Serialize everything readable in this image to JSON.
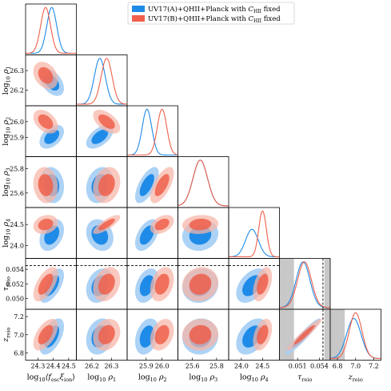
{
  "chart_data": {
    "type": "corner-plot",
    "title": "",
    "colors": {
      "A": "#1f8be8",
      "B": "#f0604a",
      "A_light": "#a8d0f4",
      "B_light": "#f7b4a6",
      "prior_band": "#c8c8c8"
    },
    "legend": {
      "placement": "top-right",
      "entries": [
        {
          "series": "A",
          "pre": "UV17(A)+QHII+Planck with ",
          "sym": "C",
          "sub": "HII",
          "post": " fixed"
        },
        {
          "series": "B",
          "pre": "UV17(B)+QHII+Planck with ",
          "sym": "C",
          "sub": "HII",
          "post": " fixed"
        }
      ]
    },
    "parameters": [
      {
        "key": "fesc",
        "pre": "log",
        "base": "10",
        "mid": "⟨f",
        "msub": "esc",
        "mid2": "ξ",
        "msub2": "ion",
        "post": "⟩",
        "range": [
          24.22,
          24.55
        ],
        "ticks": [
          "24.3",
          "24.4",
          "24.5"
        ]
      },
      {
        "key": "rho1",
        "pre": "log",
        "base": "10",
        "mid": " ρ",
        "msub": "1",
        "range": [
          26.12,
          26.38
        ],
        "ticks": [
          "26.2",
          "26.3"
        ]
      },
      {
        "key": "rho2",
        "pre": "log",
        "base": "10",
        "mid": " ρ",
        "msub": "2",
        "range": [
          25.78,
          26.1
        ],
        "ticks": [
          "25.9",
          "26.0"
        ]
      },
      {
        "key": "rho3",
        "pre": "log",
        "base": "10",
        "mid": " ρ",
        "msub": "3",
        "range": [
          25.48,
          25.9
        ],
        "ticks": [
          "25.6",
          "25.8"
        ]
      },
      {
        "key": "rho4",
        "pre": "log",
        "base": "10",
        "mid": " ρ",
        "msub": "4",
        "range": [
          23.7,
          24.9
        ],
        "ticks": [
          "24.0",
          "24.5"
        ]
      },
      {
        "key": "tau",
        "pre": "",
        "base": "",
        "mid": "τ",
        "msub": "reio",
        "range": [
          0.0485,
          0.0555
        ],
        "ticks": [
          "0.051",
          "0.054"
        ],
        "yticks": [
          "0.050",
          "0.052",
          "0.054"
        ]
      },
      {
        "key": "zreio",
        "pre": "",
        "base": "",
        "mid": "z",
        "msub": "reio",
        "range": [
          6.72,
          7.28
        ],
        "ticks": [
          "6.8",
          "7.0",
          "7.2"
        ]
      }
    ],
    "series": [
      {
        "name": "A",
        "mean": [
          24.39,
          26.24,
          25.905,
          25.665,
          24.25,
          0.05175,
          6.98
        ],
        "sigma": [
          0.032,
          0.028,
          0.03,
          0.06,
          0.15,
          0.00095,
          0.08
        ]
      },
      {
        "name": "B",
        "mean": [
          24.35,
          26.275,
          26.0,
          25.665,
          24.5,
          0.05195,
          7.0
        ],
        "sigma": [
          0.032,
          0.028,
          0.03,
          0.06,
          0.09,
          0.00095,
          0.07
        ]
      }
    ],
    "correlations": {
      "A": [
        [
          1,
          -0.45,
          0.45,
          -0.1,
          0.35,
          0.6,
          0.55
        ],
        [
          -0.45,
          1,
          0.55,
          0.2,
          -0.2,
          0.25,
          0.2
        ],
        [
          0.45,
          0.55,
          1,
          0.65,
          0.5,
          0.35,
          0.3
        ],
        [
          -0.1,
          0.2,
          0.65,
          1,
          0.1,
          0.1,
          0.05
        ],
        [
          0.35,
          -0.2,
          0.5,
          0.1,
          1,
          0.45,
          0.4
        ],
        [
          0.6,
          0.25,
          0.35,
          0.1,
          0.45,
          1,
          0.95
        ],
        [
          0.55,
          0.2,
          0.3,
          0.05,
          0.4,
          0.95,
          1
        ]
      ],
      "B": [
        [
          1,
          -0.3,
          -0.4,
          -0.1,
          0.2,
          0.6,
          0.55
        ],
        [
          -0.3,
          1,
          -0.55,
          0.2,
          0.8,
          0.25,
          0.2
        ],
        [
          -0.4,
          -0.55,
          1,
          0.65,
          0.4,
          0.3,
          0.3
        ],
        [
          -0.1,
          0.2,
          0.65,
          1,
          0.1,
          0.1,
          0.05
        ],
        [
          0.2,
          0.8,
          0.4,
          0.1,
          1,
          0.45,
          0.4
        ],
        [
          0.6,
          0.25,
          0.3,
          0.1,
          0.45,
          1,
          0.95
        ],
        [
          0.55,
          0.2,
          0.3,
          0.05,
          0.4,
          0.95,
          1
        ]
      ]
    },
    "constraints": [
      {
        "param": "tau",
        "type": "dashed-line",
        "value": 0.0545
      },
      {
        "param": "tau",
        "type": "excluded-band",
        "range": [
          0.0485,
          0.0505
        ]
      },
      {
        "param": "tau",
        "type": "excluded-band",
        "range": [
          0.0547,
          0.0555
        ]
      },
      {
        "param": "zreio",
        "type": "excluded-band",
        "range": [
          6.72,
          6.88
        ]
      }
    ],
    "contour_levels_sigma": [
      1,
      2
    ],
    "grid": false
  }
}
